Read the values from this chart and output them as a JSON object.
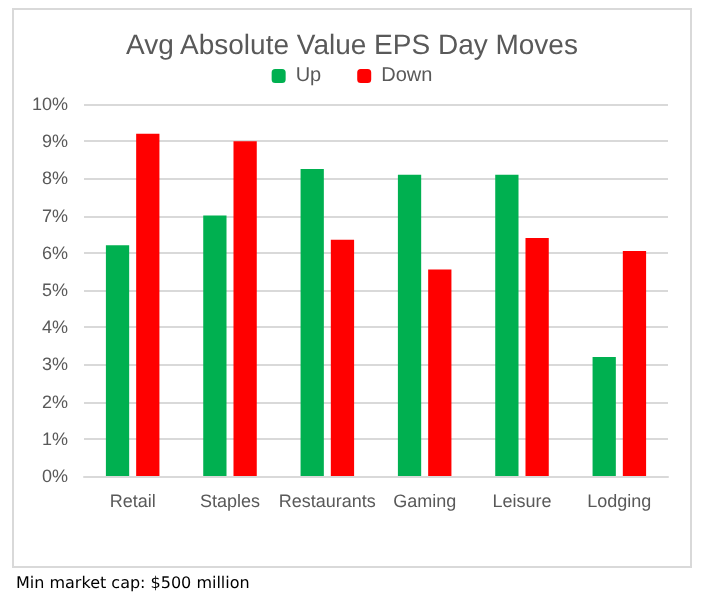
{
  "chart_data": {
    "type": "bar",
    "title": "Avg Absolute Value EPS Day Moves",
    "categories": [
      "Retail",
      "Staples",
      "Restaurants",
      "Gaming",
      "Leisure",
      "Lodging"
    ],
    "series": [
      {
        "name": "Up",
        "color": "#00b050",
        "values": [
          6.2,
          7.0,
          8.25,
          8.1,
          8.1,
          3.2
        ]
      },
      {
        "name": "Down",
        "color": "#ff0000",
        "values": [
          9.2,
          9.0,
          6.35,
          5.55,
          6.4,
          6.05
        ]
      }
    ],
    "ylim": [
      0,
      10
    ],
    "yticks": [
      {
        "value": 0,
        "label": "0%"
      },
      {
        "value": 1,
        "label": "1%"
      },
      {
        "value": 2,
        "label": "2%"
      },
      {
        "value": 3,
        "label": "3%"
      },
      {
        "value": 4,
        "label": "4%"
      },
      {
        "value": 5,
        "label": "5%"
      },
      {
        "value": 6,
        "label": "6%"
      },
      {
        "value": 7,
        "label": "7%"
      },
      {
        "value": 8,
        "label": "8%"
      },
      {
        "value": 9,
        "label": "9%"
      },
      {
        "value": 10,
        "label": "10%"
      }
    ],
    "grid": "y",
    "legend": "top",
    "annotations": [
      "Min market cap: $500 million"
    ]
  }
}
